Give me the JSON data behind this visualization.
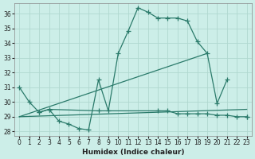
{
  "title": "",
  "xlabel": "Humidex (Indice chaleur)",
  "ylabel": "",
  "bg_color": "#cceee8",
  "grid_color": "#b0d8d0",
  "line_color": "#2a7a6a",
  "ylim": [
    27.7,
    36.7
  ],
  "xlim": [
    -0.5,
    23.5
  ],
  "yticks": [
    28,
    29,
    30,
    31,
    32,
    33,
    34,
    35,
    36
  ],
  "xticks": [
    0,
    1,
    2,
    3,
    4,
    5,
    6,
    7,
    8,
    9,
    10,
    11,
    12,
    13,
    14,
    15,
    16,
    17,
    18,
    19,
    20,
    21,
    22,
    23
  ],
  "series_main": {
    "x": [
      0,
      1,
      2,
      3,
      4,
      5,
      6,
      7,
      8,
      9,
      10,
      11,
      12,
      13,
      14,
      15,
      16,
      17,
      18,
      19,
      20,
      21,
      22,
      23
    ],
    "y": [
      31.0,
      30.0,
      29.3,
      29.5,
      28.7,
      28.5,
      28.2,
      28.1,
      31.5,
      29.4,
      33.3,
      34.8,
      36.4,
      36.1,
      35.7,
      35.7,
      35.7,
      35.5,
      34.1,
      33.3,
      29.9,
      31.5,
      null,
      29.0
    ]
  },
  "series_flat": {
    "x": [
      2,
      3,
      8,
      14,
      15,
      16,
      17,
      18,
      19,
      20,
      21,
      22,
      23
    ],
    "y": [
      29.3,
      29.5,
      29.4,
      29.4,
      29.4,
      29.2,
      29.2,
      29.2,
      29.2,
      29.1,
      29.1,
      29.0,
      29.0
    ]
  },
  "series_line1": {
    "x": [
      0,
      19
    ],
    "y": [
      29.0,
      33.3
    ]
  },
  "series_line2": {
    "x": [
      0,
      23
    ],
    "y": [
      29.0,
      29.5
    ]
  }
}
